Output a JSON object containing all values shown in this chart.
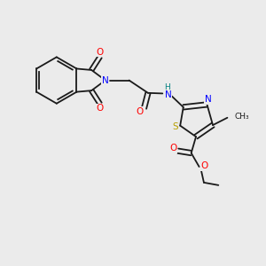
{
  "bg_color": "#ebebeb",
  "bond_color": "#1a1a1a",
  "N_color": "#0000ff",
  "O_color": "#ff0000",
  "S_color": "#b8a000",
  "H_color": "#008080",
  "lw": 1.3,
  "fs": 7.5,
  "fs_s": 6.5,
  "xlim": [
    0,
    10
  ],
  "ylim": [
    0,
    10
  ]
}
